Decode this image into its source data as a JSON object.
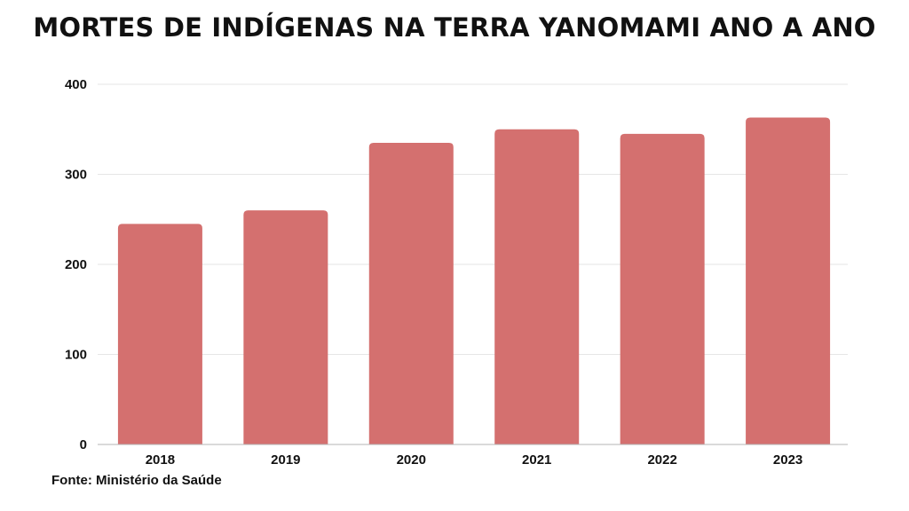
{
  "chart_data": {
    "type": "bar",
    "title": "MORTES DE INDÍGENAS NA TERRA YANOMAMI ANO A ANO",
    "categories": [
      "2018",
      "2019",
      "2020",
      "2021",
      "2022",
      "2023"
    ],
    "values": [
      245,
      260,
      335,
      350,
      345,
      363
    ],
    "ylim": [
      0,
      400
    ],
    "yticks": [
      0,
      100,
      200,
      300,
      400
    ],
    "grid": true,
    "bar_color": "#d4706f",
    "source": "Fonte: Ministério da Saúde"
  }
}
